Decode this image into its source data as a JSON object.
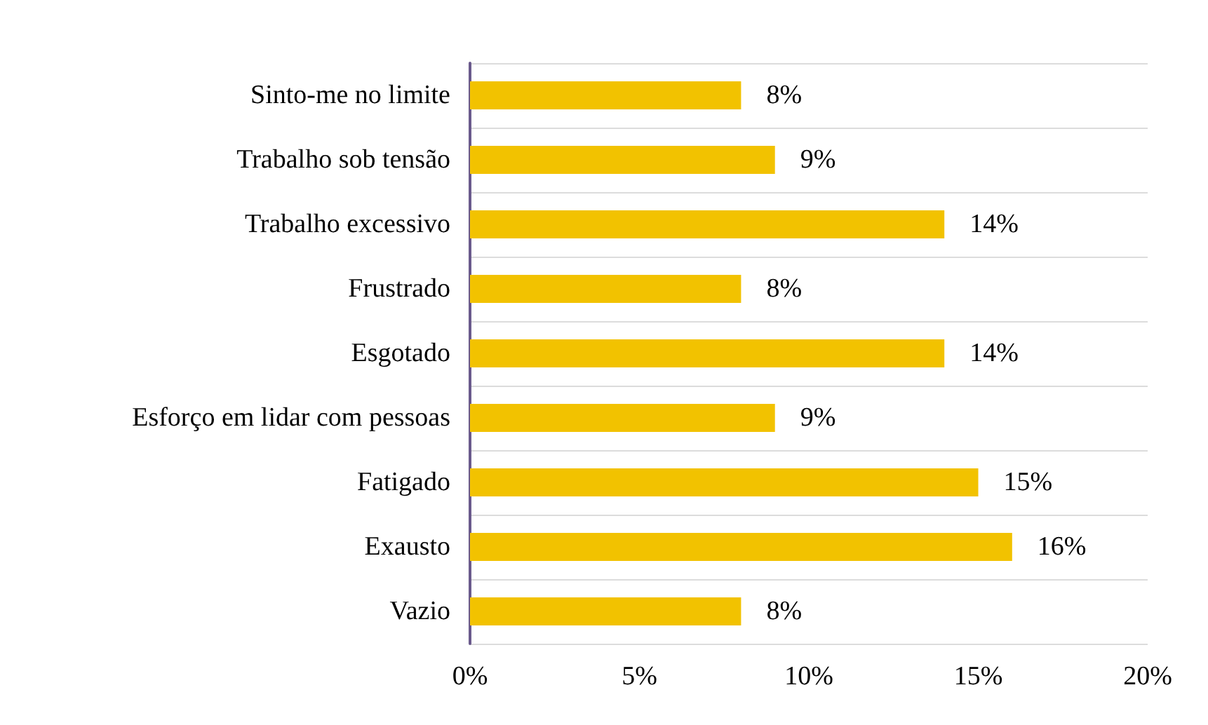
{
  "chart_data": {
    "type": "bar",
    "orientation": "horizontal",
    "categories": [
      "Sinto-me no limite",
      "Trabalho sob tensão",
      "Trabalho excessivo",
      "Frustrado",
      "Esgotado",
      "Esforço em lidar com pessoas",
      "Fatigado",
      "Exausto",
      "Vazio"
    ],
    "values": [
      8,
      9,
      14,
      8,
      14,
      9,
      15,
      16,
      8
    ],
    "value_labels": [
      "8%",
      "9%",
      "14%",
      "8%",
      "14%",
      "9%",
      "15%",
      "16%",
      "8%"
    ],
    "color": "#f2c200",
    "xlim": [
      0,
      20
    ],
    "xticks": [
      {
        "value": 0,
        "label": "0%"
      },
      {
        "value": 5,
        "label": "5%"
      },
      {
        "value": 10,
        "label": "10%"
      },
      {
        "value": 15,
        "label": "15%"
      },
      {
        "value": 20,
        "label": "20%"
      }
    ],
    "grid": "y"
  }
}
